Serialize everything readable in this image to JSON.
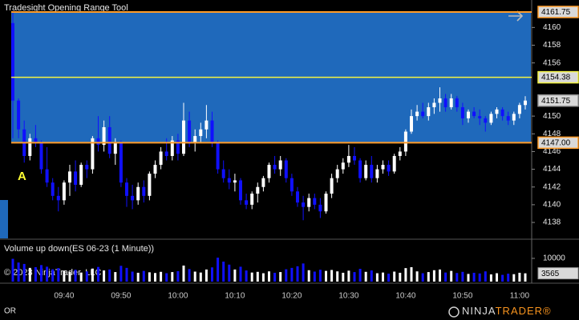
{
  "chart_data": {
    "type": "candlestick",
    "title": "Tradesight Opening Range Tool",
    "categories": [
      null,
      null,
      null,
      null,
      null,
      null,
      null,
      null,
      null,
      "09:40",
      null,
      null,
      null,
      null,
      null,
      null,
      null,
      null,
      null,
      "09:50",
      null,
      null,
      null,
      null,
      null,
      null,
      null,
      null,
      null,
      "10:00",
      null,
      null,
      null,
      null,
      null,
      null,
      null,
      null,
      null,
      "10:10",
      null,
      null,
      null,
      null,
      null,
      null,
      null,
      null,
      null,
      "10:20",
      null,
      null,
      null,
      null,
      null,
      null,
      null,
      null,
      null,
      "10:30",
      null,
      null,
      null,
      null,
      null,
      null,
      null,
      null,
      null,
      "10:40",
      null,
      null,
      null,
      null,
      null,
      null,
      null,
      null,
      null,
      "10:50",
      null,
      null,
      null,
      null,
      null,
      null,
      null,
      null,
      null,
      "11:00",
      null
    ],
    "open": [
      4160.5,
      4151.75,
      4148.5,
      4145.5,
      4147.5,
      4147,
      4144,
      4142.5,
      4141,
      4140.5,
      4142.5,
      4143.75,
      4142.25,
      4144.5,
      4144,
      4147.5,
      4146.75,
      4148.75,
      4145.75,
      4147,
      4142.5,
      4141,
      4140.5,
      4142,
      4141,
      4143.5,
      4144.5,
      4146,
      4145.5,
      4147.25,
      4145.75,
      4149.5,
      4147,
      4147.75,
      4148.5,
      4149.5,
      4147,
      4144,
      4143,
      4142.5,
      4142.75,
      4140.5,
      4140,
      4141.25,
      4142,
      4143,
      4144.5,
      4144,
      4145,
      4143,
      4141.5,
      4140.25,
      4139.75,
      4140.75,
      4140,
      4139.25,
      4141.25,
      4143,
      4144,
      4144.75,
      4145.5,
      4145,
      4143,
      4144.5,
      4143,
      4144,
      4144.5,
      4143.75,
      4145.5,
      4146,
      4148.25,
      4150,
      4150.5,
      4150,
      4151,
      4151.5,
      4152,
      4151,
      4152,
      4151,
      4149.75,
      4150.5,
      4150,
      4149.75,
      4149.25,
      4150.25,
      4150.75,
      4150,
      4149.5,
      4150.25,
      4151.25
    ],
    "high": [
      4161.75,
      4152,
      4149.5,
      4148,
      4149,
      4147.25,
      4146.5,
      4143,
      4142,
      4142.75,
      4144.5,
      4145,
      4144.75,
      4145,
      4147.75,
      4150,
      4149.5,
      4150,
      4147.5,
      4147.25,
      4143,
      4142.25,
      4142.5,
      4142.75,
      4143.75,
      4145,
      4146.5,
      4147.5,
      4147.75,
      4148,
      4151.5,
      4150.5,
      4148.5,
      4149.25,
      4151.25,
      4150.5,
      4147.25,
      4145,
      4144,
      4143.5,
      4143,
      4141.25,
      4141.5,
      4142.5,
      4143.25,
      4144.75,
      4145.5,
      4145.5,
      4145.25,
      4143.5,
      4142,
      4141,
      4141.25,
      4141.25,
      4140.75,
      4141.5,
      4143.5,
      4144.5,
      4145.25,
      4146.75,
      4146.5,
      4145.25,
      4145,
      4145.5,
      4144.5,
      4145,
      4145,
      4145.75,
      4146.5,
      4148.5,
      4150.75,
      4151.25,
      4151.5,
      4151.5,
      4152,
      4153.25,
      4152.5,
      4152.5,
      4152.25,
      4151.5,
      4150.75,
      4151,
      4150.75,
      4150,
      4150.5,
      4151,
      4151,
      4150.5,
      4150.5,
      4151.5,
      4152.25
    ],
    "low": [
      4147.5,
      4147.5,
      4144.75,
      4145,
      4146.5,
      4143.5,
      4142,
      4140.5,
      4139.25,
      4140,
      4141,
      4141.5,
      4142,
      4143,
      4143.5,
      4146,
      4146,
      4145.25,
      4144.5,
      4142,
      4139.75,
      4139.5,
      4140,
      4140.25,
      4140.5,
      4143,
      4144,
      4145,
      4145,
      4145,
      4145.5,
      4146.5,
      4146,
      4147,
      4147.5,
      4146.5,
      4143.5,
      4142.5,
      4141.75,
      4141.5,
      4140,
      4139.5,
      4139.5,
      4140.25,
      4141.5,
      4142.5,
      4143.5,
      4143.25,
      4142.5,
      4141,
      4139.75,
      4138.25,
      4139.25,
      4139.5,
      4138.5,
      4139,
      4140.75,
      4142.5,
      4143.5,
      4144.25,
      4144.5,
      4142.5,
      4142.75,
      4142.5,
      4142.5,
      4143.5,
      4143.25,
      4143.5,
      4145,
      4145.5,
      4148,
      4149.5,
      4149.75,
      4149.5,
      4150.25,
      4150.5,
      4150.5,
      4150.75,
      4150.5,
      4149,
      4149.25,
      4149.75,
      4149,
      4148.25,
      4149,
      4149.75,
      4149.5,
      4149,
      4149,
      4149.75,
      4150.75
    ],
    "close": [
      4151.75,
      4148.5,
      4145.5,
      4147.5,
      4147,
      4144,
      4142.5,
      4141,
      4140.5,
      4142.5,
      4143.75,
      4142.25,
      4144.5,
      4144,
      4147.5,
      4146.75,
      4148.75,
      4145.75,
      4147,
      4142.5,
      4141,
      4140.5,
      4142,
      4141,
      4143.5,
      4144.5,
      4146,
      4145.5,
      4147.25,
      4145.75,
      4149.5,
      4147,
      4147.75,
      4148.5,
      4149.5,
      4147,
      4144,
      4143,
      4142.5,
      4142.75,
      4140.5,
      4140,
      4141.25,
      4142,
      4143,
      4144.5,
      4144,
      4145,
      4143,
      4141.5,
      4140.25,
      4139.75,
      4140.75,
      4140,
      4139.25,
      4141.25,
      4143,
      4144,
      4144.75,
      4145.5,
      4145,
      4143,
      4144.5,
      4143,
      4144,
      4144.5,
      4143.75,
      4145.5,
      4146,
      4148.25,
      4150,
      4150.5,
      4150,
      4151,
      4151.5,
      4152,
      4151,
      4152,
      4151,
      4149.75,
      4150.5,
      4150,
      4149.75,
      4149.25,
      4150.25,
      4150.75,
      4150,
      4149.5,
      4150.25,
      4151.25,
      4151.75
    ],
    "up_color": "#ffffff",
    "down_color": "#1010ff",
    "ylim": [
      4136.2,
      4163.1
    ],
    "yticks": [
      4138,
      4140,
      4142,
      4144,
      4146,
      4148,
      4150,
      4156,
      4158,
      4160
    ],
    "opening_range": {
      "high": 4161.75,
      "mid": 4154.38,
      "low": {
        "value": 4147,
        "label": "4147.00"
      },
      "fill": "#1f69bb",
      "edge_color": "#ff9c28",
      "mid_color": "#f4f442"
    },
    "annotation": "A",
    "volume": {
      "title": "Volume up down(ES 06-23 (1 Minute))",
      "values": [
        9800,
        8200,
        7600,
        5900,
        6200,
        7100,
        6400,
        5300,
        5800,
        4700,
        4200,
        5100,
        3900,
        4400,
        5600,
        6300,
        4800,
        5200,
        4100,
        6800,
        5900,
        4300,
        3800,
        4600,
        4000,
        3700,
        4200,
        3600,
        4100,
        4500,
        6900,
        5400,
        4300,
        3900,
        5200,
        6100,
        10300,
        8600,
        7300,
        5200,
        6400,
        4800,
        3900,
        4200,
        3600,
        4400,
        3800,
        4100,
        5300,
        5900,
        6600,
        7800,
        4900,
        4300,
        5100,
        4600,
        5000,
        4400,
        3800,
        4700,
        4100,
        5500,
        4200,
        4800,
        3600,
        3900,
        3400,
        4300,
        3800,
        5800,
        6200,
        4400,
        3600,
        4100,
        4900,
        5200,
        3900,
        4600,
        3700,
        4200,
        3300,
        3800,
        3500,
        4400,
        3100,
        3600,
        2900,
        3400,
        3200,
        3800,
        3565
      ],
      "ylim": [
        0,
        17900
      ],
      "yticks": [
        10000
      ]
    },
    "copyright": "© 2023 NinjaTrader, LLC",
    "footer_label": "OR",
    "brand": [
      "NINJA",
      "TRADER®"
    ]
  }
}
